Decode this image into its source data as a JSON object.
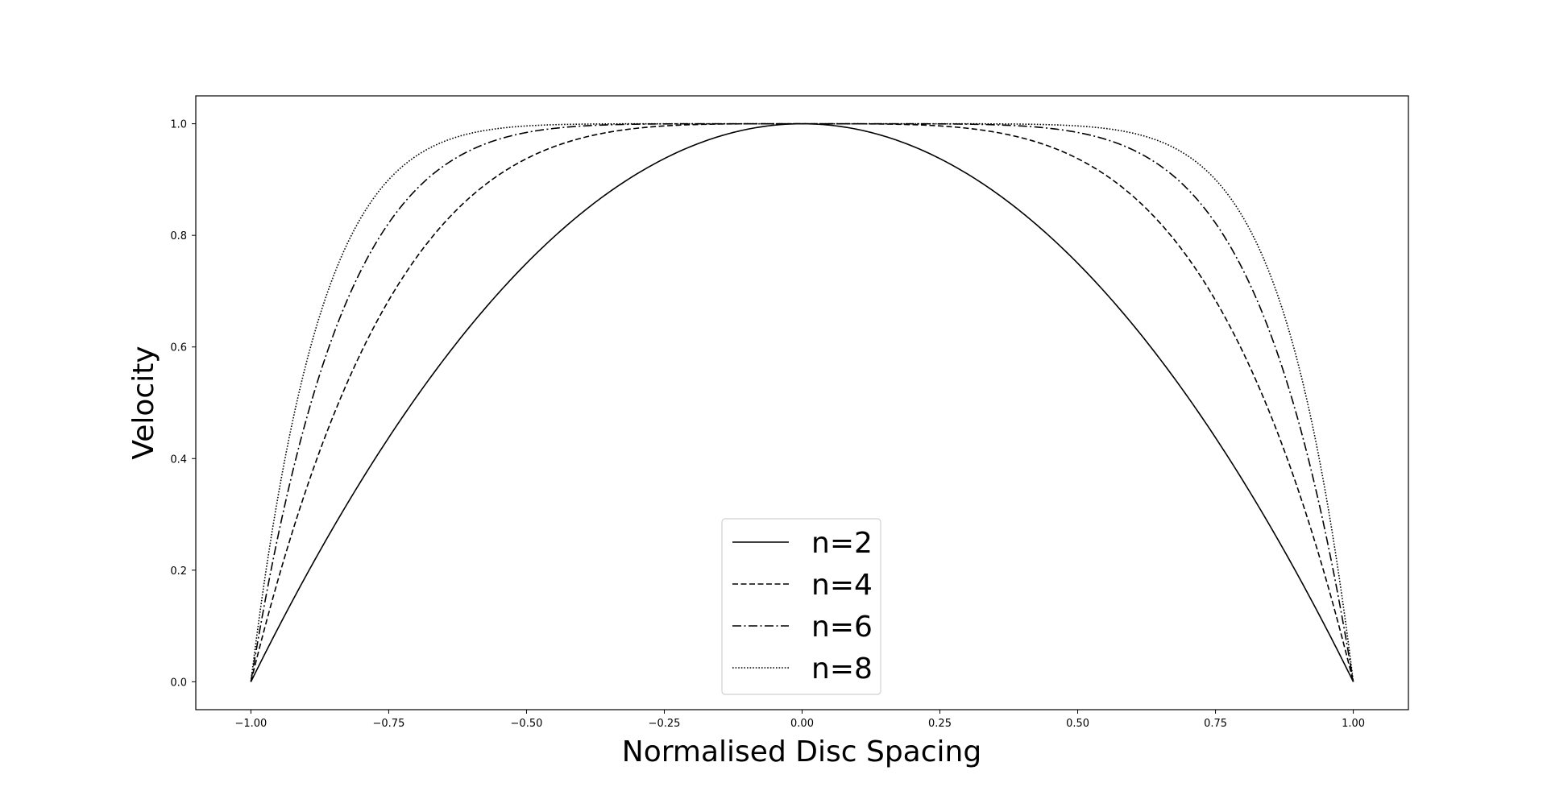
{
  "chart_data": {
    "type": "line",
    "title": "",
    "xlabel": "Normalised Disc Spacing",
    "ylabel": "Velocity",
    "xlim": [
      -1.1,
      1.1
    ],
    "ylim": [
      -0.05,
      1.05
    ],
    "x_ticks": [
      -1.0,
      -0.75,
      -0.5,
      -0.25,
      0.0,
      0.25,
      0.5,
      0.75,
      1.0
    ],
    "x_tick_labels": [
      "−1.00",
      "−0.75",
      "−0.50",
      "−0.25",
      "0.00",
      "0.25",
      "0.50",
      "0.75",
      "1.00"
    ],
    "y_ticks": [
      0.0,
      0.2,
      0.4,
      0.6,
      0.8,
      1.0
    ],
    "y_tick_labels": [
      "0.0",
      "0.2",
      "0.4",
      "0.6",
      "0.8",
      "1.0"
    ],
    "grid": false,
    "legend_position": "bottom-center",
    "x": [
      -1.0,
      -0.95,
      -0.9,
      -0.85,
      -0.8,
      -0.75,
      -0.7,
      -0.65,
      -0.6,
      -0.55,
      -0.5,
      -0.45,
      -0.4,
      -0.35,
      -0.3,
      -0.25,
      -0.2,
      -0.15,
      -0.1,
      -0.05,
      0.0,
      0.05,
      0.1,
      0.15,
      0.2,
      0.25,
      0.3,
      0.35,
      0.4,
      0.45,
      0.5,
      0.55,
      0.6,
      0.65,
      0.7,
      0.75,
      0.8,
      0.85,
      0.9,
      0.95,
      1.0
    ],
    "series": [
      {
        "name": "n=2",
        "color": "#000000",
        "dash": "solid",
        "values": [
          0.0,
          0.0975,
          0.19,
          0.2775,
          0.36,
          0.4375,
          0.51,
          0.5775,
          0.64,
          0.6975,
          0.75,
          0.7975,
          0.84,
          0.8775,
          0.91,
          0.9375,
          0.96,
          0.9775,
          0.99,
          0.9975,
          1.0,
          0.9975,
          0.99,
          0.9775,
          0.96,
          0.9375,
          0.91,
          0.8775,
          0.84,
          0.7975,
          0.75,
          0.6975,
          0.64,
          0.5775,
          0.51,
          0.4375,
          0.36,
          0.2775,
          0.19,
          0.0975,
          0.0
        ]
      },
      {
        "name": "n=4",
        "color": "#000000",
        "dash": "dashed",
        "values": [
          0.0,
          0.1855,
          0.3439,
          0.478,
          0.5904,
          0.6836,
          0.7599,
          0.8215,
          0.8704,
          0.9085,
          0.9375,
          0.959,
          0.9744,
          0.985,
          0.9919,
          0.9961,
          0.9984,
          0.9995,
          0.9999,
          1.0,
          1.0,
          1.0,
          0.9999,
          0.9995,
          0.9984,
          0.9961,
          0.9919,
          0.985,
          0.9744,
          0.959,
          0.9375,
          0.9085,
          0.8704,
          0.8215,
          0.7599,
          0.6836,
          0.5904,
          0.478,
          0.3439,
          0.1855,
          0.0
        ]
      },
      {
        "name": "n=6",
        "color": "#000000",
        "dash": "dashdot",
        "values": [
          0.0,
          0.2649,
          0.4686,
          0.6229,
          0.7379,
          0.822,
          0.8824,
          0.9246,
          0.9533,
          0.9723,
          0.9844,
          0.9917,
          0.9959,
          0.9982,
          0.9993,
          0.9998,
          0.9999,
          1.0,
          1.0,
          1.0,
          1.0,
          1.0,
          1.0,
          1.0,
          0.9999,
          0.9998,
          0.9993,
          0.9982,
          0.9959,
          0.9917,
          0.9844,
          0.9723,
          0.9533,
          0.9246,
          0.8824,
          0.822,
          0.7379,
          0.6229,
          0.4686,
          0.2649,
          0.0
        ]
      },
      {
        "name": "n=8",
        "color": "#000000",
        "dash": "dotted",
        "values": [
          0.0,
          0.3366,
          0.5695,
          0.7275,
          0.8322,
          0.8999,
          0.9424,
          0.9681,
          0.9832,
          0.9916,
          0.9961,
          0.9983,
          0.9993,
          0.9998,
          0.9999,
          1.0,
          1.0,
          1.0,
          1.0,
          1.0,
          1.0,
          1.0,
          1.0,
          1.0,
          1.0,
          1.0,
          0.9999,
          0.9998,
          0.9993,
          0.9983,
          0.9961,
          0.9916,
          0.9832,
          0.9681,
          0.9424,
          0.8999,
          0.8322,
          0.7275,
          0.5695,
          0.3366,
          0.0
        ]
      }
    ]
  }
}
